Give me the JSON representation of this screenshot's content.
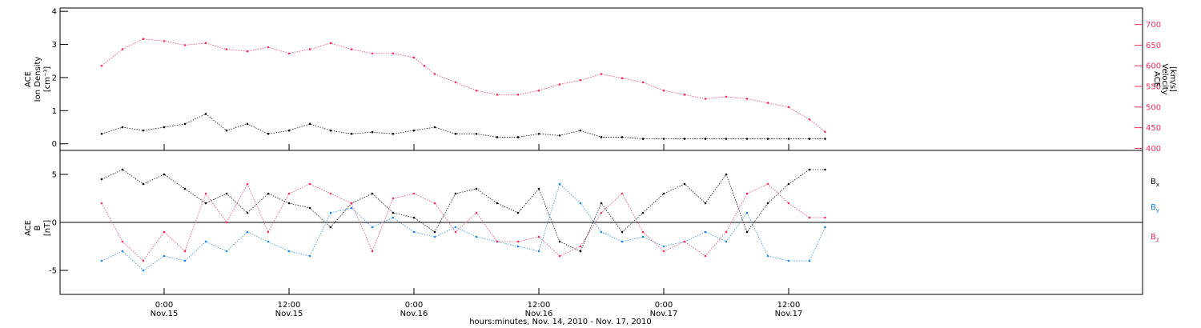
{
  "chart_data": [
    {
      "type": "scatter",
      "panel": "top",
      "ylabel_left": [
        "ACE",
        "Ion Density",
        "[cm⁻³]"
      ],
      "ylabel_right": [
        "ACE",
        "Velocity",
        "[km/s]"
      ],
      "left_axis": {
        "ylim": [
          -0.2,
          4.1
        ],
        "ticks": [
          "0",
          "1",
          "2",
          "3",
          "4"
        ]
      },
      "right_axis": {
        "ylim": [
          395,
          740
        ],
        "ticks": [
          "400",
          "450",
          "500",
          "550",
          "600",
          "650",
          "700"
        ],
        "color": "#e8325f"
      },
      "series": [
        {
          "color": "#000000",
          "points": [
            [
              -6,
              0.3
            ],
            [
              -4,
              0.5
            ],
            [
              -2,
              0.4
            ],
            [
              0,
              0.5
            ],
            [
              2,
              0.6
            ],
            [
              4,
              0.9
            ],
            [
              6,
              0.4
            ],
            [
              8,
              0.6
            ],
            [
              10,
              0.3
            ],
            [
              12,
              0.4
            ],
            [
              14,
              0.6
            ],
            [
              16,
              0.4
            ],
            [
              18,
              0.3
            ],
            [
              20,
              0.35
            ],
            [
              22,
              0.3
            ],
            [
              24,
              0.4
            ],
            [
              26,
              0.5
            ],
            [
              28,
              0.3
            ],
            [
              30,
              0.3
            ],
            [
              32,
              0.2
            ],
            [
              34,
              0.2
            ],
            [
              36,
              0.3
            ],
            [
              38,
              0.25
            ],
            [
              40,
              0.4
            ],
            [
              42,
              0.2
            ],
            [
              44,
              0.2
            ],
            [
              46,
              0.15
            ],
            [
              48,
              0.15
            ],
            [
              50,
              0.15
            ],
            [
              52,
              0.15
            ],
            [
              54,
              0.15
            ],
            [
              56,
              0.15
            ],
            [
              58,
              0.15
            ],
            [
              60,
              0.15
            ],
            [
              62,
              0.15
            ],
            [
              63.5,
              0.15
            ]
          ]
        },
        {
          "color": "#e8325f",
          "points": [
            [
              -6,
              600
            ],
            [
              -4,
              640
            ],
            [
              -2,
              665
            ],
            [
              0,
              660
            ],
            [
              2,
              650
            ],
            [
              4,
              655
            ],
            [
              6,
              640
            ],
            [
              8,
              635
            ],
            [
              10,
              645
            ],
            [
              12,
              630
            ],
            [
              14,
              640
            ],
            [
              16,
              655
            ],
            [
              18,
              640
            ],
            [
              20,
              630
            ],
            [
              22,
              630
            ],
            [
              24,
              620
            ],
            [
              25,
              600
            ],
            [
              26,
              580
            ],
            [
              28,
              560
            ],
            [
              30,
              540
            ],
            [
              32,
              530
            ],
            [
              34,
              530
            ],
            [
              36,
              540
            ],
            [
              38,
              555
            ],
            [
              40,
              565
            ],
            [
              42,
              580
            ],
            [
              44,
              570
            ],
            [
              46,
              560
            ],
            [
              48,
              540
            ],
            [
              50,
              530
            ],
            [
              52,
              520
            ],
            [
              54,
              525
            ],
            [
              56,
              520
            ],
            [
              58,
              510
            ],
            [
              60,
              500
            ],
            [
              62,
              470
            ],
            [
              63.5,
              440
            ]
          ]
        }
      ]
    },
    {
      "type": "scatter",
      "panel": "bottom",
      "ylabel_left": [
        "ACE",
        "B",
        "[nT]"
      ],
      "left_axis": {
        "ylim": [
          -7.5,
          7.5
        ],
        "ticks": [
          "-5",
          "0",
          "5"
        ]
      },
      "legend": [
        {
          "label": "B",
          "sub": "x",
          "color": "#000000"
        },
        {
          "label": "B",
          "sub": "y",
          "color": "#1e88e5"
        },
        {
          "label": "B",
          "sub": "z",
          "color": "#e8325f"
        }
      ],
      "series": [
        {
          "name": "Bx",
          "color": "#000000",
          "points": [
            [
              -6,
              4.5
            ],
            [
              -4,
              5.5
            ],
            [
              -2,
              4
            ],
            [
              0,
              5
            ],
            [
              2,
              3.5
            ],
            [
              4,
              2
            ],
            [
              6,
              3
            ],
            [
              8,
              1
            ],
            [
              10,
              3
            ],
            [
              12,
              2
            ],
            [
              14,
              1.5
            ],
            [
              16,
              -0.5
            ],
            [
              18,
              2
            ],
            [
              20,
              3
            ],
            [
              22,
              1
            ],
            [
              24,
              0.5
            ],
            [
              26,
              -1
            ],
            [
              28,
              3
            ],
            [
              30,
              3.5
            ],
            [
              32,
              2
            ],
            [
              34,
              1
            ],
            [
              36,
              3.5
            ],
            [
              38,
              -2
            ],
            [
              40,
              -3
            ],
            [
              42,
              2
            ],
            [
              44,
              -1
            ],
            [
              46,
              1
            ],
            [
              48,
              3
            ],
            [
              50,
              4
            ],
            [
              52,
              2
            ],
            [
              54,
              5
            ],
            [
              56,
              -1
            ],
            [
              58,
              2
            ],
            [
              60,
              4
            ],
            [
              62,
              5.5
            ],
            [
              63.5,
              5.5
            ]
          ]
        },
        {
          "name": "By",
          "color": "#1e88e5",
          "points": [
            [
              -6,
              -4
            ],
            [
              -4,
              -3
            ],
            [
              -2,
              -5
            ],
            [
              0,
              -3.5
            ],
            [
              2,
              -4
            ],
            [
              4,
              -2
            ],
            [
              6,
              -3
            ],
            [
              8,
              -1
            ],
            [
              10,
              -2
            ],
            [
              12,
              -3
            ],
            [
              14,
              -3.5
            ],
            [
              16,
              1
            ],
            [
              18,
              1.5
            ],
            [
              20,
              -0.5
            ],
            [
              22,
              0.5
            ],
            [
              24,
              -1
            ],
            [
              26,
              -1.5
            ],
            [
              28,
              -0.5
            ],
            [
              30,
              -1.5
            ],
            [
              32,
              -2
            ],
            [
              34,
              -2.5
            ],
            [
              36,
              -3
            ],
            [
              38,
              4
            ],
            [
              40,
              2
            ],
            [
              42,
              -1
            ],
            [
              44,
              -2
            ],
            [
              46,
              -1.5
            ],
            [
              48,
              -2.5
            ],
            [
              50,
              -2
            ],
            [
              52,
              -1
            ],
            [
              54,
              -2
            ],
            [
              56,
              1
            ],
            [
              58,
              -3.5
            ],
            [
              60,
              -4
            ],
            [
              62,
              -4
            ],
            [
              63.5,
              -0.5
            ]
          ]
        },
        {
          "name": "Bz",
          "color": "#e8325f",
          "points": [
            [
              -6,
              2
            ],
            [
              -4,
              -2
            ],
            [
              -2,
              -4
            ],
            [
              0,
              -1
            ],
            [
              2,
              -3
            ],
            [
              4,
              3
            ],
            [
              6,
              0
            ],
            [
              8,
              4
            ],
            [
              10,
              -1
            ],
            [
              12,
              3
            ],
            [
              14,
              4
            ],
            [
              16,
              3
            ],
            [
              18,
              2
            ],
            [
              20,
              -3
            ],
            [
              22,
              2.5
            ],
            [
              24,
              3
            ],
            [
              26,
              2
            ],
            [
              28,
              -1
            ],
            [
              30,
              1
            ],
            [
              32,
              -2
            ],
            [
              34,
              -2
            ],
            [
              36,
              -1.5
            ],
            [
              38,
              -3.5
            ],
            [
              40,
              -2.5
            ],
            [
              42,
              1
            ],
            [
              44,
              3
            ],
            [
              46,
              -1
            ],
            [
              48,
              -3
            ],
            [
              50,
              -2
            ],
            [
              52,
              -3.5
            ],
            [
              54,
              -1
            ],
            [
              56,
              3
            ],
            [
              58,
              4
            ],
            [
              60,
              2
            ],
            [
              62,
              0.5
            ],
            [
              63.5,
              0.5
            ]
          ]
        }
      ]
    }
  ],
  "xaxis": {
    "range_hours": [
      -10,
      94
    ],
    "ticks": [
      {
        "h": 0,
        "time": "0:00",
        "day": "Nov.15"
      },
      {
        "h": 12,
        "time": "12:00",
        "day": "Nov.15"
      },
      {
        "h": 24,
        "time": "0:00",
        "day": "Nov.16"
      },
      {
        "h": 36,
        "time": "12:00",
        "day": "Nov.16"
      },
      {
        "h": 48,
        "time": "0:00",
        "day": "Nov.17"
      },
      {
        "h": 60,
        "time": "12:00",
        "day": "Nov.17"
      }
    ],
    "label": "hours:minutes, Nov. 14, 2010 - Nov. 17, 2010"
  },
  "colors": {
    "axis": "#000000",
    "red": "#e8325f",
    "blue": "#1e88e5"
  }
}
